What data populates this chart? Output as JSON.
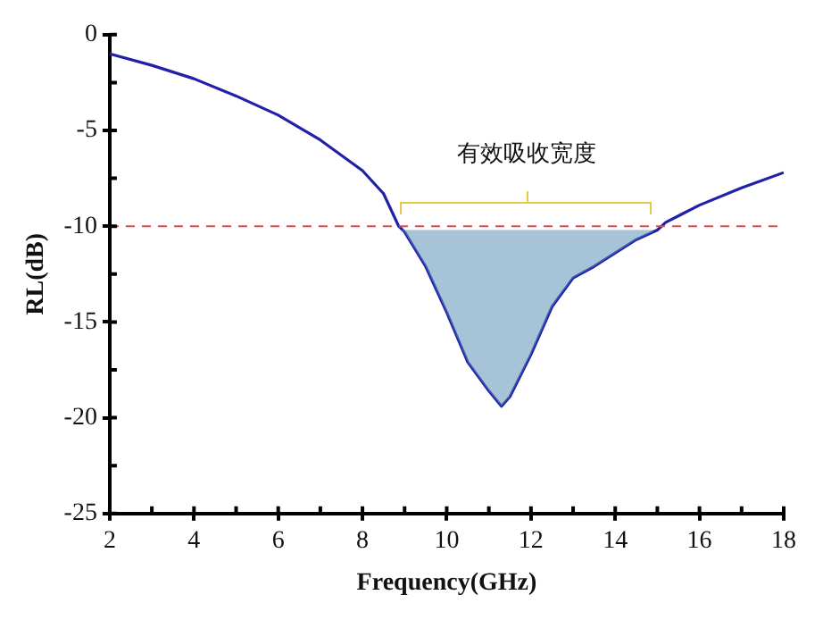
{
  "chart_data": {
    "type": "line",
    "xlabel": "Frequency(GHz)",
    "ylabel": "RL(dB)",
    "x": [
      2,
      3,
      4,
      5,
      6,
      7,
      8,
      8.5,
      8.86,
      9,
      9.5,
      10,
      10.5,
      11,
      11.3,
      11.5,
      12,
      12.5,
      13,
      13.5,
      14,
      14.5,
      15,
      15.2,
      16,
      17,
      18
    ],
    "series": [
      {
        "color": "#2020a8",
        "values": [
          -1.0,
          -1.6,
          -2.3,
          -3.2,
          -4.2,
          -5.5,
          -7.1,
          -8.3,
          -10.0,
          -10.3,
          -12.1,
          -14.5,
          -17.1,
          -18.6,
          -19.4,
          -18.9,
          -16.7,
          -14.2,
          -12.7,
          -12.1,
          -11.4,
          -10.7,
          -10.2,
          -9.8,
          -8.9,
          -8.0,
          -7.2
        ]
      }
    ],
    "xlim": [
      2,
      18
    ],
    "xticks": [
      2,
      4,
      6,
      8,
      10,
      12,
      14,
      16,
      18
    ],
    "ylim": [
      -25,
      0
    ],
    "yticks": [
      -25,
      -20,
      -15,
      -10,
      -5,
      0
    ],
    "grid": false,
    "legend": false,
    "marker": "none",
    "line_style": "solid",
    "ref_lines": [
      {
        "axis": "y",
        "value": -10,
        "color": "#e04848",
        "line_style": "dashed"
      }
    ],
    "bands": [
      {
        "axis": "x",
        "from": 8.9,
        "to": 14.9,
        "color": "#5a8fb4"
      }
    ],
    "annotations": [
      "有效吸收宽度"
    ]
  }
}
